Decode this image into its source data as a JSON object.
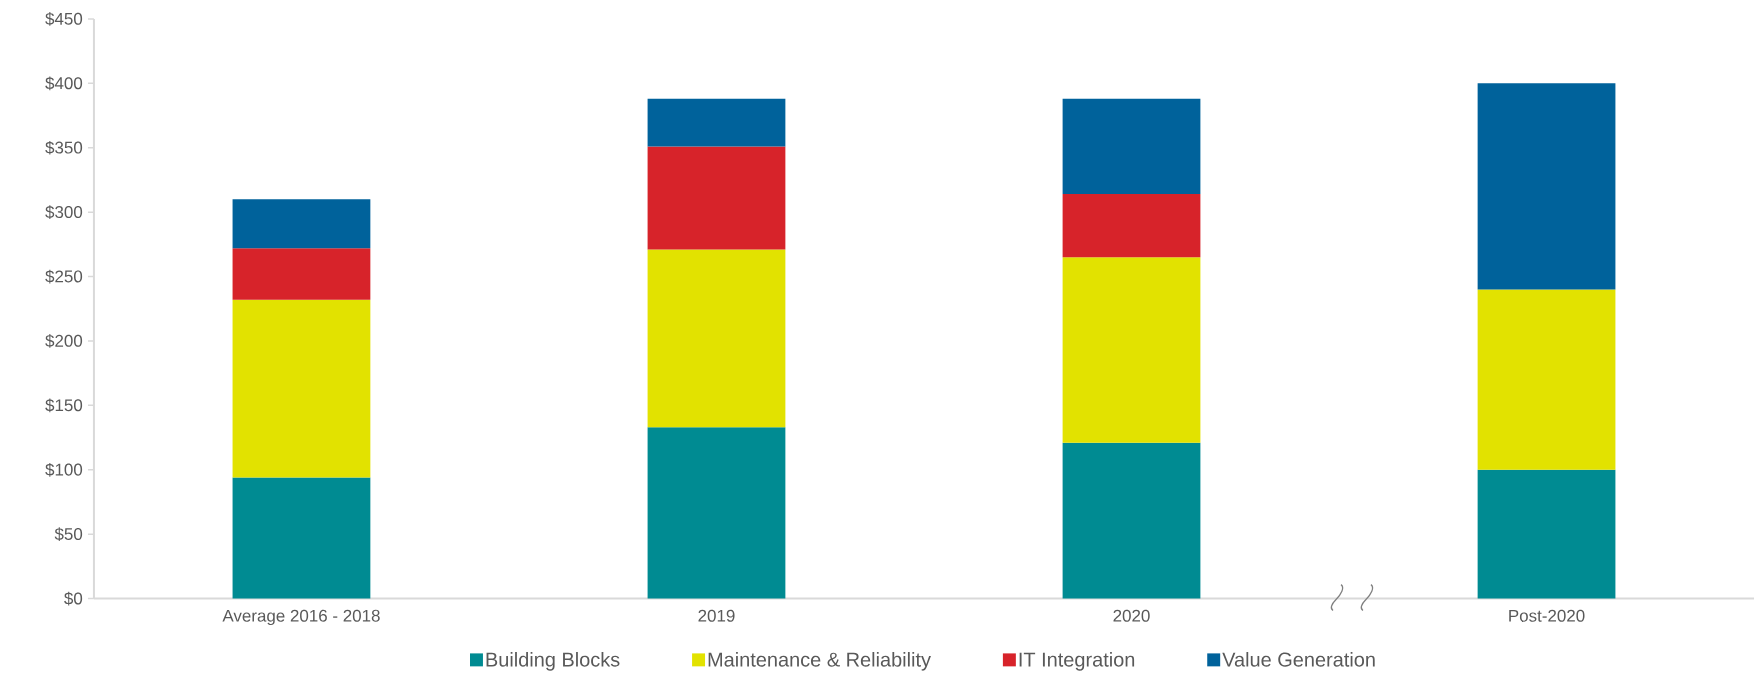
{
  "chart_data": {
    "type": "bar",
    "stacked": true,
    "categories": [
      "Average 2016 - 2018",
      "2019",
      "2020",
      "Post-2020"
    ],
    "series": [
      {
        "name": "Building Blocks",
        "color": "#008b92",
        "values": [
          94,
          133,
          121,
          100
        ]
      },
      {
        "name": "Maintenance & Reliability",
        "color": "#e2e200",
        "values": [
          138,
          138,
          144,
          140
        ]
      },
      {
        "name": "IT Integration",
        "color": "#d7232a",
        "values": [
          40,
          80,
          49,
          null
        ]
      },
      {
        "name": "Value Generation",
        "color": "#00629b",
        "values": [
          38,
          37,
          74,
          160
        ]
      }
    ],
    "ylim": [
      0,
      450
    ],
    "yticks": [
      {
        "value": 0,
        "label": "$0"
      },
      {
        "value": 50,
        "label": "$50"
      },
      {
        "value": 100,
        "label": "$100"
      },
      {
        "value": 150,
        "label": "$150"
      },
      {
        "value": 200,
        "label": "$200"
      },
      {
        "value": 250,
        "label": "$250"
      },
      {
        "value": 300,
        "label": "$300"
      },
      {
        "value": 350,
        "label": "$350"
      },
      {
        "value": 400,
        "label": "$400"
      },
      {
        "value": 450,
        "label": "$450"
      }
    ],
    "grid": false,
    "legend": "bottom"
  }
}
